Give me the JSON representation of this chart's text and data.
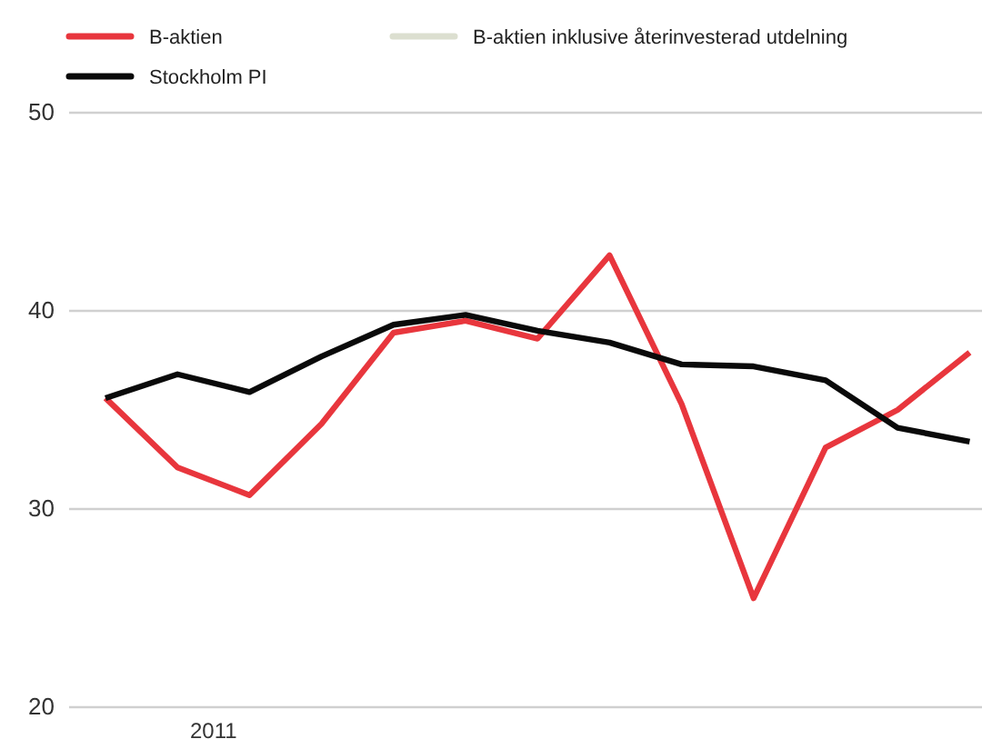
{
  "chart_data": {
    "type": "line",
    "categories": [
      null,
      null,
      null,
      null,
      null,
      null,
      null,
      null,
      null,
      null,
      null,
      null,
      null
    ],
    "annotations": [
      "2011"
    ],
    "ylim": [
      20,
      50
    ],
    "yticks": [
      20,
      30,
      40,
      50
    ],
    "grid": "y",
    "legend": "top left",
    "marker": "none",
    "line_style": "solid",
    "series": [
      {
        "name": "B-aktien",
        "color": "#e8363d",
        "values": [
          35.6,
          32.1,
          30.7,
          34.3,
          38.9,
          39.5,
          38.6,
          42.8,
          35.3,
          25.5,
          33.1,
          35.0,
          37.9
        ]
      },
      {
        "name": "B-aktien inklusive återinvesterad utdelning",
        "color": "#dcdfd0",
        "values": [
          null,
          null,
          null,
          null,
          null,
          null,
          null,
          null,
          null,
          null,
          null,
          null,
          null
        ]
      },
      {
        "name": "Stockholm PI",
        "color": "#0a0a0a",
        "values": [
          35.6,
          36.8,
          35.9,
          37.7,
          39.3,
          39.8,
          39.0,
          38.4,
          37.3,
          37.2,
          36.5,
          34.1,
          33.4
        ]
      }
    ]
  }
}
